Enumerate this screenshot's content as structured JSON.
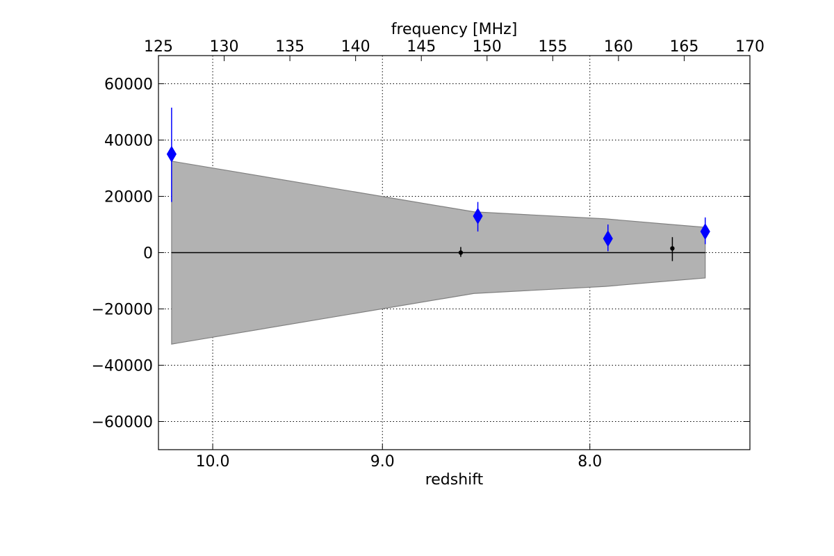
{
  "chart_data": {
    "type": "scatter",
    "title": "",
    "xlabel_bottom": "redshift",
    "xlabel_top": "frequency [MHz]",
    "ylabel": "",
    "frequency_range_MHz": [
      125,
      170
    ],
    "ylim": [
      -70000,
      70000
    ],
    "grid": true,
    "y_ticks": [
      60000,
      40000,
      20000,
      0,
      -20000,
      -40000,
      -60000
    ],
    "y_tick_labels": [
      "60000",
      "40000",
      "20000",
      "0",
      "−20000",
      "−40000",
      "−60000"
    ],
    "top_ticks_MHz": [
      125,
      130,
      135,
      140,
      145,
      150,
      155,
      160,
      165,
      170
    ],
    "top_tick_labels": [
      "125",
      "130",
      "135",
      "140",
      "145",
      "150",
      "155",
      "160",
      "165",
      "170"
    ],
    "bottom_ticks_redshift": [
      10.0,
      9.0,
      8.0,
      7.0
    ],
    "bottom_tick_labels": [
      "10.0",
      "9.0",
      "8.0",
      "7.0"
    ],
    "zero_line": {
      "freq_range_MHz": [
        126.0,
        166.6
      ],
      "y": 0
    },
    "band": {
      "freq_MHz": [
        126.0,
        149.0,
        159.0,
        164.0,
        166.6
      ],
      "upper": [
        32500,
        14500,
        12000,
        10000,
        9000
      ],
      "lower": [
        -32500,
        -14500,
        -12000,
        -10000,
        -9000
      ]
    },
    "series": [
      {
        "marker": "diamond",
        "color": "#0000ff",
        "points": [
          {
            "freq_MHz": 126.0,
            "y": 35000,
            "yerr_low": 17000,
            "yerr_high": 16500
          },
          {
            "freq_MHz": 149.3,
            "y": 13000,
            "yerr_low": 5500,
            "yerr_high": 5000
          },
          {
            "freq_MHz": 159.2,
            "y": 5000,
            "yerr_low": 4500,
            "yerr_high": 5000
          },
          {
            "freq_MHz": 166.6,
            "y": 7500,
            "yerr_low": 4500,
            "yerr_high": 5000
          }
        ]
      },
      {
        "marker": "dot",
        "color": "#000000",
        "points": [
          {
            "freq_MHz": 148.0,
            "y": 0,
            "yerr_low": 1500,
            "yerr_high": 2000
          },
          {
            "freq_MHz": 164.1,
            "y": 1500,
            "yerr_low": 4500,
            "yerr_high": 4000
          }
        ]
      }
    ]
  }
}
